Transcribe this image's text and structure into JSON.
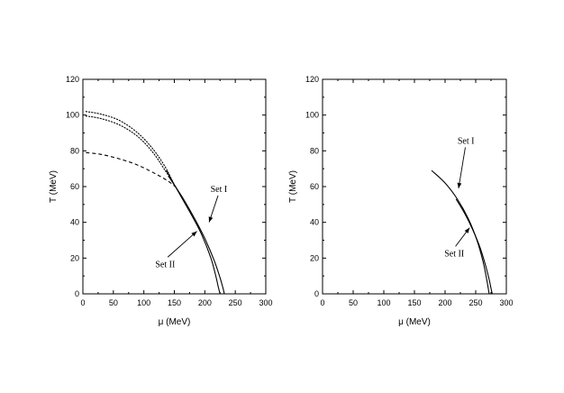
{
  "chart_data": [
    {
      "type": "line",
      "xlabel": "μ (MeV)",
      "ylabel": "T (MeV)",
      "xlim": [
        0,
        300
      ],
      "ylim": [
        0,
        120
      ],
      "xticks": [
        "0",
        "50",
        "100",
        "150",
        "200",
        "250",
        "300"
      ],
      "yticks": [
        "0",
        "20",
        "40",
        "60",
        "80",
        "100",
        "120"
      ],
      "grid": false,
      "series": [
        {
          "style": "dotted",
          "x": [
            5,
            30,
            60,
            90,
            115,
            135,
            147
          ],
          "y": [
            102,
            100.5,
            97,
            90,
            81,
            71,
            63
          ]
        },
        {
          "style": "dotted",
          "x": [
            5,
            30,
            60,
            90,
            115,
            135,
            150
          ],
          "y": [
            99.5,
            98,
            94.5,
            88,
            79,
            69,
            61
          ]
        },
        {
          "style": "dashed",
          "x": [
            5,
            30,
            60,
            90,
            120,
            140,
            155
          ],
          "y": [
            79,
            78,
            75.5,
            72,
            67,
            63,
            59
          ]
        },
        {
          "style": "solid",
          "x": [
            137,
            160,
            180,
            195,
            210,
            218,
            222,
            225
          ],
          "y": [
            69,
            55,
            43,
            33,
            20,
            10,
            4,
            0
          ]
        },
        {
          "style": "solid",
          "x": [
            140,
            165,
            185,
            200,
            215,
            225,
            230,
            232
          ],
          "y": [
            66,
            53,
            41,
            31,
            19,
            9,
            3,
            0
          ]
        }
      ],
      "annotations": [
        {
          "text": "Set I",
          "x": 223,
          "y": 57,
          "arrow_to": [
            207,
            40
          ]
        },
        {
          "text": "Set II",
          "x": 135,
          "y": 15,
          "arrow_to": [
            187,
            35
          ]
        }
      ]
    },
    {
      "type": "line",
      "xlabel": "μ (MeV)",
      "ylabel": "T (MeV)",
      "xlim": [
        0,
        300
      ],
      "ylim": [
        0,
        120
      ],
      "xticks": [
        "0",
        "50",
        "100",
        "150",
        "200",
        "250",
        "300"
      ],
      "yticks": [
        "0",
        "20",
        "40",
        "60",
        "80",
        "100",
        "120"
      ],
      "grid": false,
      "series": [
        {
          "style": "solid",
          "x": [
            178,
            200,
            220,
            238,
            252,
            262,
            268,
            271,
            272
          ],
          "y": [
            69,
            62,
            53,
            42,
            30,
            18,
            8,
            2,
            0
          ]
        },
        {
          "style": "solid",
          "x": [
            218,
            232,
            245,
            257,
            266,
            272,
            275,
            277
          ],
          "y": [
            53,
            45,
            36,
            26,
            16,
            8,
            3,
            0
          ]
        }
      ],
      "annotations": [
        {
          "text": "Set I",
          "x": 234,
          "y": 84,
          "arrow_to": [
            222,
            59
          ]
        },
        {
          "text": "Set II",
          "x": 215,
          "y": 21,
          "arrow_to": [
            240,
            37
          ]
        }
      ]
    }
  ]
}
